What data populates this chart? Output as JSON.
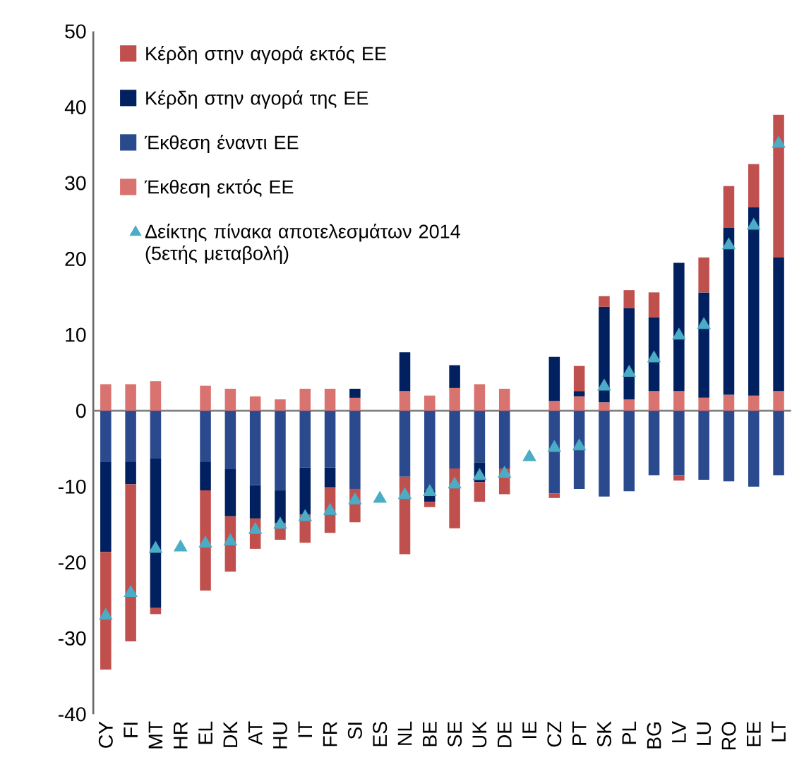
{
  "chart_data": {
    "type": "bar",
    "stacked": true,
    "legend": "top left",
    "grid": false,
    "categories": [
      "CY",
      "FI",
      "MT",
      "HR",
      "EL",
      "DK",
      "AT",
      "HU",
      "IT",
      "FR",
      "SI",
      "ES",
      "NL",
      "BE",
      "SE",
      "UK",
      "DE",
      "IE",
      "CZ",
      "PT",
      "SK",
      "PL",
      "BG",
      "LV",
      "LU",
      "RO",
      "EE",
      "LT"
    ],
    "ylim": [
      -40,
      50
    ],
    "ref_lines": [
      {
        "axis": "y",
        "value": 0,
        "color": "#7f7f7f"
      }
    ],
    "yticks": [
      -40,
      -30,
      -20,
      -10,
      0,
      10,
      20,
      30,
      40,
      50
    ],
    "series": [
      {
        "name": "Έκθεση εκτός ΕΕ",
        "color": "#d9736f",
        "values": [
          3.5,
          3.5,
          3.9,
          null,
          3.3,
          2.9,
          1.9,
          1.5,
          2.9,
          2.9,
          1.7,
          null,
          2.6,
          2.0,
          3.0,
          3.5,
          2.9,
          null,
          1.3,
          1.9,
          1.1,
          1.5,
          2.6,
          2.6,
          1.7,
          2.1,
          2.0,
          2.6
        ]
      },
      {
        "name": "Έκθεση έναντι ΕΕ",
        "color": "#2b4a8e",
        "values": [
          -6.7,
          -6.7,
          -6.3,
          null,
          -6.7,
          -7.7,
          -9.8,
          -10.5,
          -7.5,
          -7.5,
          -10.3,
          null,
          -8.7,
          -10.5,
          -7.6,
          -6.8,
          -7.6,
          null,
          -10.9,
          -10.3,
          -11.3,
          -10.6,
          -8.5,
          -8.5,
          -9.1,
          -9.3,
          -10.0,
          -8.5
        ]
      },
      {
        "name": "Κέρδη στην αγορά της ΕΕ",
        "color": "#002060",
        "values": [
          -11.9,
          -3.0,
          -19.7,
          null,
          -3.8,
          -6.2,
          -4.4,
          -4.3,
          -6.2,
          -2.6,
          1.2,
          null,
          5.1,
          -1.5,
          3.0,
          -2.6,
          null,
          null,
          5.8,
          0.7,
          12.6,
          12.0,
          9.7,
          16.9,
          13.9,
          22.0,
          24.8,
          17.6
        ]
      },
      {
        "name": "Κέρδη στην αγορά εκτός ΕΕ",
        "color": "#c0504d",
        "values": [
          -15.5,
          -20.7,
          -0.8,
          null,
          -13.2,
          -7.3,
          -4.0,
          -2.2,
          -3.7,
          -6.0,
          -4.4,
          null,
          -10.2,
          -0.7,
          -7.9,
          -2.6,
          -3.4,
          null,
          -0.6,
          3.3,
          1.4,
          2.4,
          3.3,
          -0.7,
          4.6,
          5.5,
          5.7,
          18.8
        ]
      },
      {
        "name": "Δείκτης πίνακα αποτελεσμάτων 2014 (5ετής μεταβολή)",
        "type": "scatter",
        "marker": "triangle",
        "color": "#4bacc6",
        "x": [
          "CY",
          "FI",
          "MT",
          "HR",
          "EL",
          "DK",
          "AT",
          "HU",
          "IT",
          "FR",
          "SI",
          "ES",
          "NL",
          "BE",
          "SE",
          "UK",
          "DE",
          "IE",
          "CZ",
          "PT",
          "SK",
          "PL",
          "BG",
          "LV",
          "LU",
          "RO",
          "EE",
          "LT"
        ],
        "values": [
          -27,
          -24,
          -18.2,
          -18,
          -17.5,
          -17.2,
          -15.7,
          -15,
          -14,
          -13.2,
          -11.8,
          -11.6,
          -11.1,
          -10.7,
          -9.7,
          -8.6,
          -8.3,
          -6.1,
          -4.9,
          -4.7,
          3.2,
          5,
          6.9,
          9.9,
          11.3,
          21.8,
          24.4,
          35.2
        ]
      }
    ]
  }
}
